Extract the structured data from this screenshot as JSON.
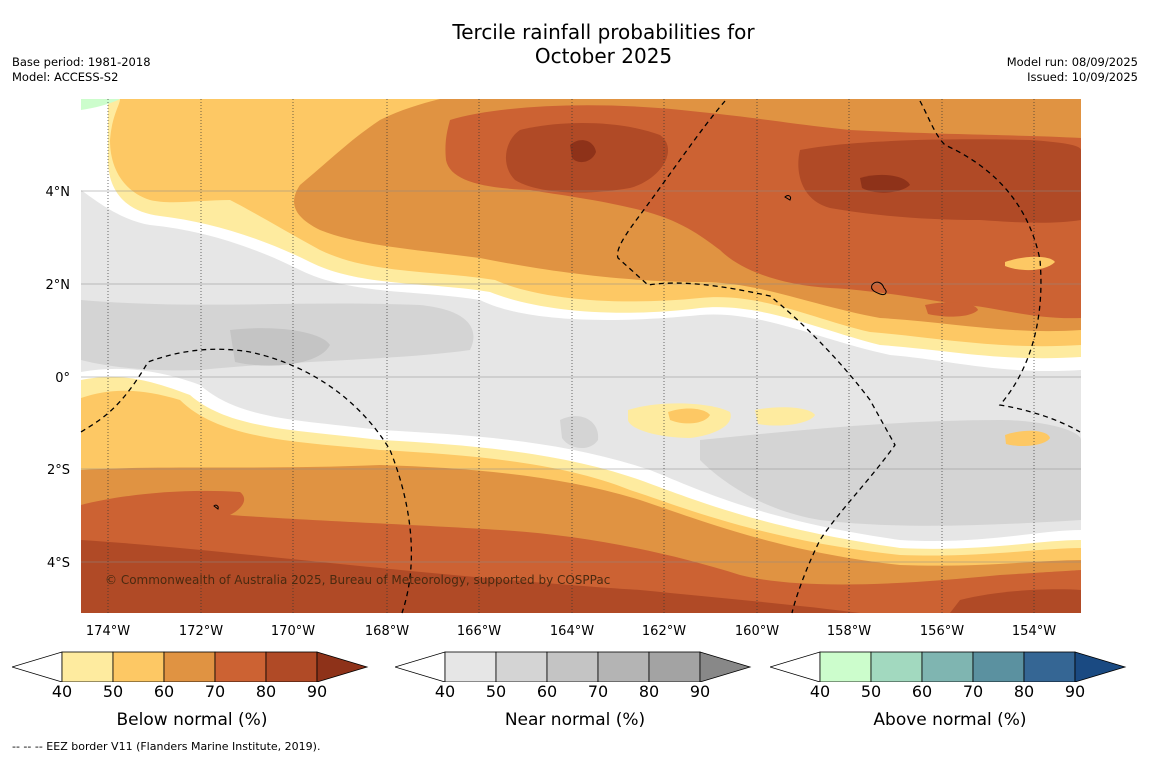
{
  "header": {
    "title_line1": "Tercile rainfall probabilities for",
    "title_line2": "October 2025",
    "base_period": "Base period: 1981-2018",
    "model": "Model: ACCESS-S2",
    "model_run": "Model run: 08/09/2025",
    "issued": "Issued: 10/09/2025"
  },
  "map": {
    "lat_labels": [
      "4°N",
      "2°N",
      "0°",
      "2°S",
      "4°S"
    ],
    "lon_labels": [
      "174°W",
      "172°W",
      "170°W",
      "168°W",
      "166°W",
      "164°W",
      "162°W",
      "160°W",
      "158°W",
      "156°W",
      "154°W"
    ],
    "copyright": "© Commonwealth of Australia 2025, Bureau of Meteorology, supported by COSPPac"
  },
  "colorbars": [
    {
      "title": "Below normal (%)",
      "ticks": [
        "40",
        "50",
        "60",
        "70",
        "80",
        "90"
      ],
      "colors": [
        "#ffffff",
        "#feeb9f",
        "#fdc864",
        "#e09342",
        "#cc6233",
        "#b04a26",
        "#8e3219"
      ]
    },
    {
      "title": "Near normal (%)",
      "ticks": [
        "40",
        "50",
        "60",
        "70",
        "80",
        "90"
      ],
      "colors": [
        "#ffffff",
        "#e6e6e6",
        "#d4d4d4",
        "#c4c4c4",
        "#b4b4b4",
        "#a3a3a3",
        "#888888"
      ]
    },
    {
      "title": "Above normal (%)",
      "ticks": [
        "40",
        "50",
        "60",
        "70",
        "80",
        "90"
      ],
      "colors": [
        "#ffffff",
        "#ccfdcc",
        "#a2d9bf",
        "#7fb5b1",
        "#5b91a0",
        "#356694",
        "#1a4a82"
      ]
    }
  ],
  "footer": "-- -- -- EEZ border V11 (Flanders Marine Institute, 2019)."
}
